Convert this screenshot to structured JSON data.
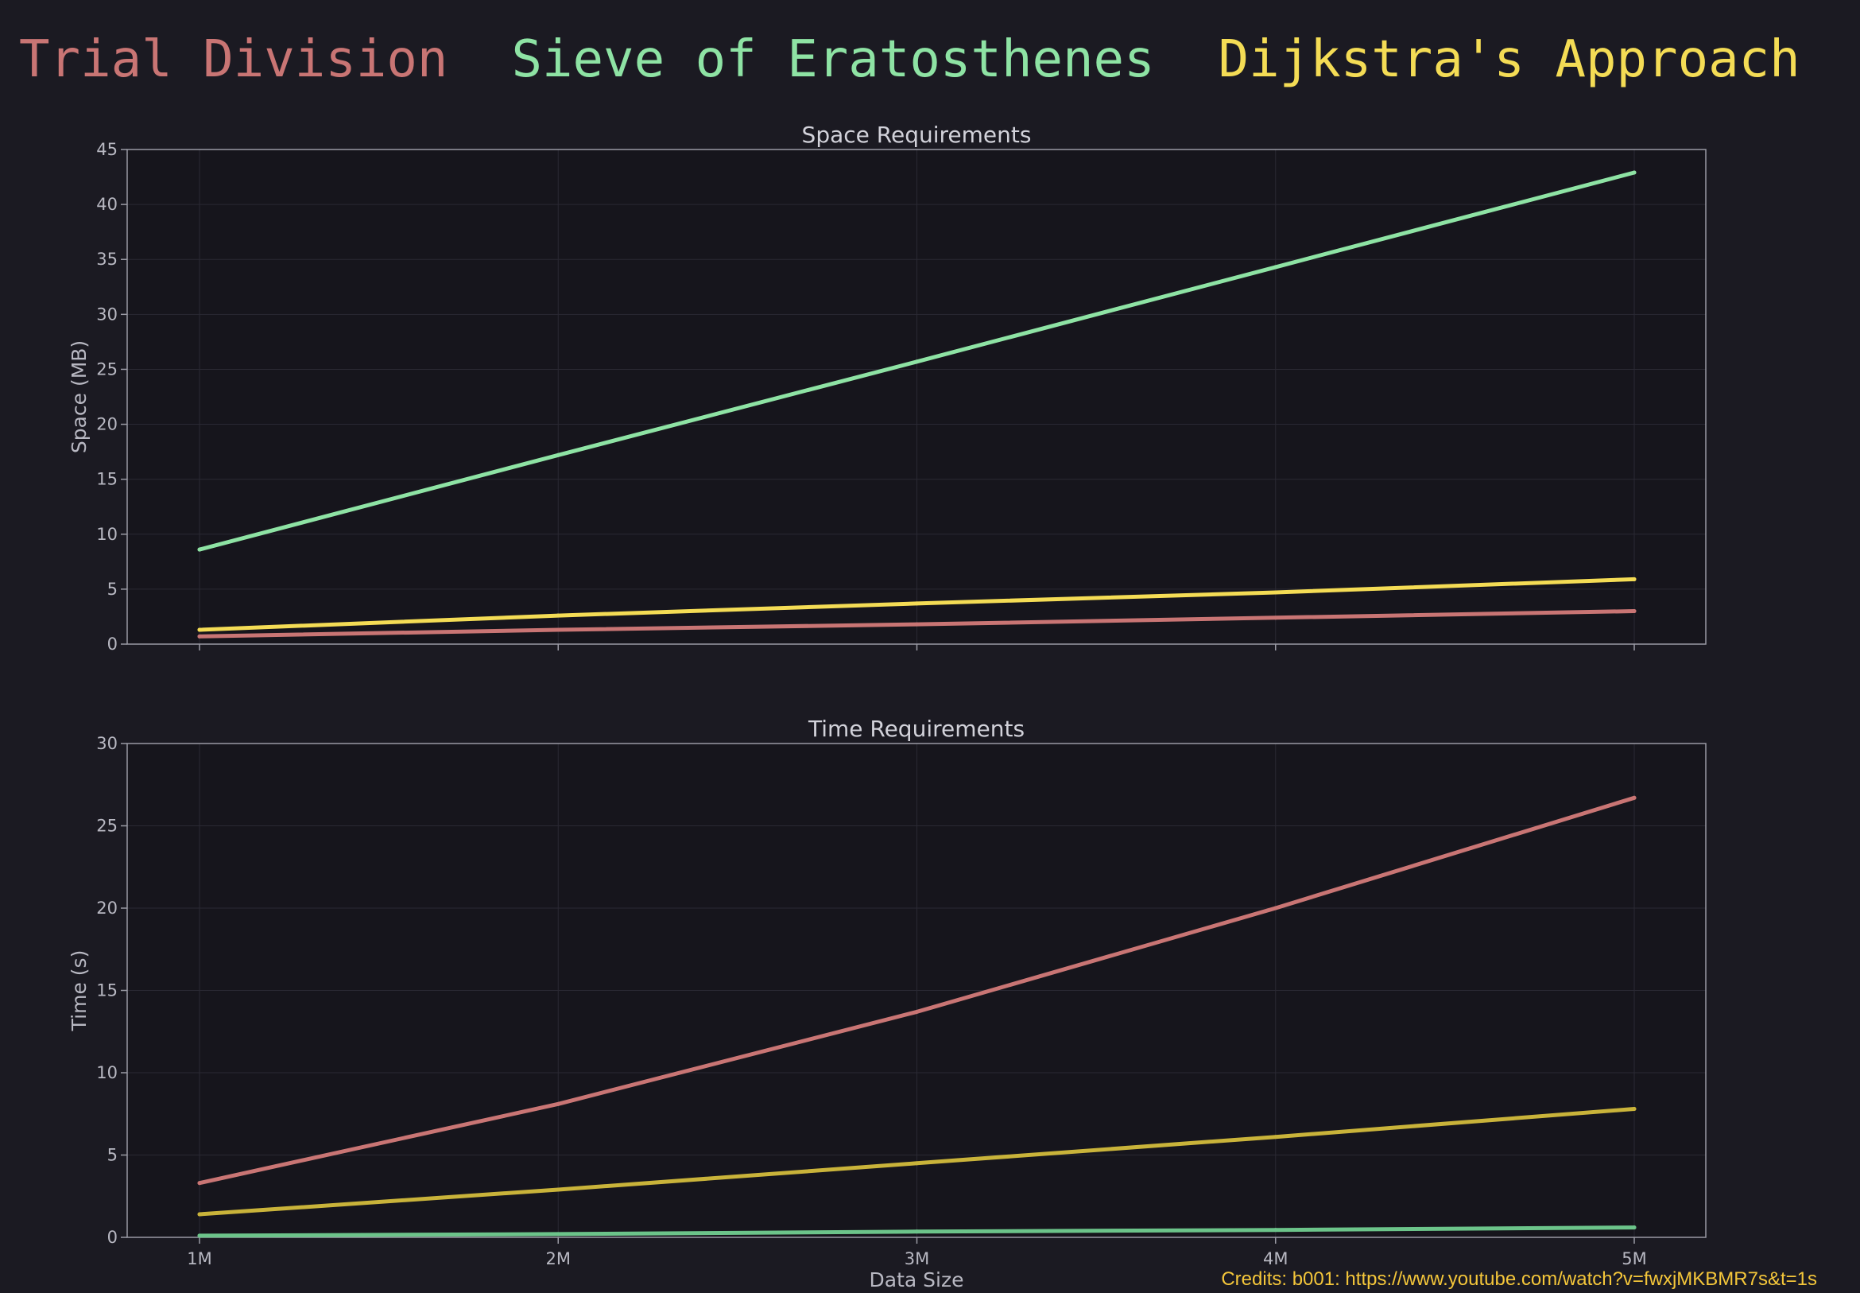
{
  "legend": [
    {
      "label": "Trial Division",
      "color": "#c97574"
    },
    {
      "label": "Sieve of Eratosthenes",
      "color": "#8ee3a4"
    },
    {
      "label": "Dijkstra's Approach",
      "color": "#f4dc55"
    }
  ],
  "credits": {
    "text": "Credits: b001: https://www.youtube.com/watch?v=fwxjMKBMR7s&t=1s",
    "color": "#f4c63a"
  },
  "colors": {
    "background": "#1b1a22",
    "plot_bg": "#16151c",
    "grid": "#2a2933",
    "frame": "#9a9aa4"
  },
  "chart_data": [
    {
      "type": "line",
      "title": "Space Requirements",
      "xlabel": "",
      "ylabel": "Space (MB)",
      "categories": [
        "1M",
        "2M",
        "3M",
        "4M",
        "5M"
      ],
      "ylim": [
        0,
        45
      ],
      "yticks": [
        0,
        5,
        10,
        15,
        20,
        25,
        30,
        35,
        40,
        45
      ],
      "grid": true,
      "show_xtick_labels": false,
      "series": [
        {
          "name": "Trial Division",
          "color": "#c97574",
          "values": [
            0.7,
            1.3,
            1.8,
            2.4,
            3.0
          ]
        },
        {
          "name": "Sieve of Eratosthenes",
          "color": "#8ee3a4",
          "values": [
            8.6,
            17.2,
            25.7,
            34.3,
            42.9
          ]
        },
        {
          "name": "Dijkstra's Approach",
          "color": "#f4dc55",
          "values": [
            1.3,
            2.6,
            3.7,
            4.7,
            5.9
          ]
        }
      ]
    },
    {
      "type": "line",
      "title": "Time Requirements",
      "xlabel": "Data Size",
      "ylabel": "Time (s)",
      "categories": [
        "1M",
        "2M",
        "3M",
        "4M",
        "5M"
      ],
      "ylim": [
        0,
        30
      ],
      "yticks": [
        0,
        5,
        10,
        15,
        20,
        25,
        30
      ],
      "grid": true,
      "show_xtick_labels": true,
      "series": [
        {
          "name": "Trial Division",
          "color": "#c97574",
          "values": [
            3.3,
            8.1,
            13.7,
            20.0,
            26.7
          ]
        },
        {
          "name": "Sieve of Eratosthenes",
          "color": "#6cc48a",
          "values": [
            0.1,
            0.2,
            0.35,
            0.45,
            0.6
          ]
        },
        {
          "name": "Dijkstra's Approach",
          "color": "#c9b33a",
          "values": [
            1.4,
            2.9,
            4.5,
            6.1,
            7.8
          ]
        }
      ]
    }
  ]
}
